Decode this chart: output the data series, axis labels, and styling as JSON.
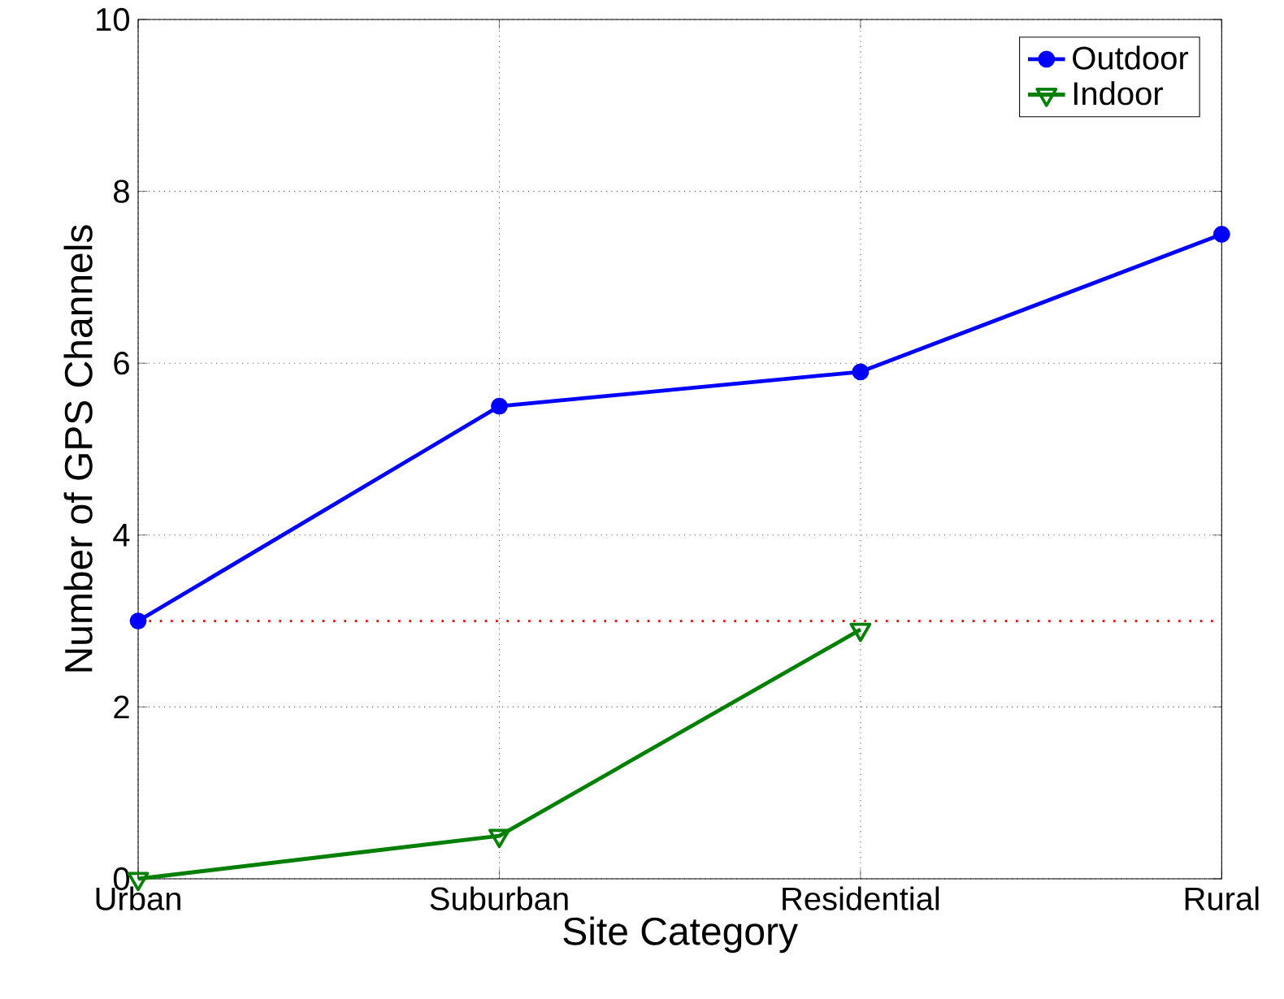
{
  "chart_data": {
    "type": "line",
    "xlabel": "Site Category",
    "ylabel": "Number of GPS Channels",
    "categories": [
      "Urban",
      "Suburban",
      "Residential",
      "Rural"
    ],
    "series": [
      {
        "name": "Outdoor",
        "color": "#0000ff",
        "marker": "circle",
        "values": [
          3.0,
          5.5,
          5.9,
          7.5
        ]
      },
      {
        "name": "Indoor",
        "color": "#007f00",
        "marker": "triangle",
        "values": [
          0,
          0.5,
          2.9,
          null
        ]
      }
    ],
    "ylim": [
      0,
      10
    ],
    "yticks": [
      0,
      2,
      4,
      6,
      8,
      10
    ],
    "ref_lines": [
      {
        "axis": "y",
        "value": 3,
        "color": "#ff0000",
        "line_style": "dashed"
      }
    ],
    "grid": true,
    "legend": "top right",
    "line_style": "solid"
  }
}
